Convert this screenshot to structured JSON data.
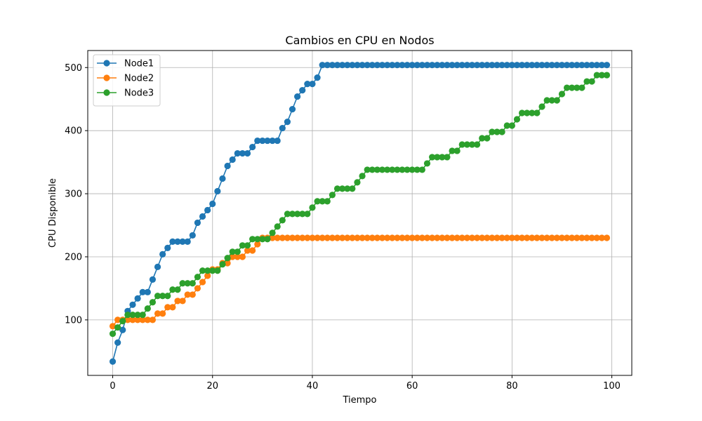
{
  "chart_data": {
    "type": "line",
    "title": "Cambios en CPU en Nodos",
    "xlabel": "Tiempo",
    "ylabel": "CPU Disponible",
    "xlim": [
      -5,
      104
    ],
    "ylim": [
      12,
      527
    ],
    "xticks": [
      0,
      20,
      40,
      60,
      80,
      100
    ],
    "yticks": [
      100,
      200,
      300,
      400,
      500
    ],
    "grid": true,
    "legend_position": "upper-left",
    "series": [
      {
        "name": "Node1",
        "color": "#1f77b4",
        "values": [
          34,
          64,
          84,
          114,
          124,
          134,
          144,
          144,
          164,
          184,
          204,
          214,
          224,
          224,
          224,
          224,
          234,
          254,
          264,
          274,
          284,
          304,
          324,
          344,
          354,
          364,
          364,
          364,
          374,
          384,
          384,
          384,
          384,
          384,
          404,
          414,
          434,
          454,
          464,
          474,
          474,
          484,
          504,
          504,
          504,
          504,
          504,
          504,
          504,
          504,
          504,
          504,
          504,
          504,
          504,
          504,
          504,
          504,
          504,
          504,
          504,
          504,
          504,
          504,
          504,
          504,
          504,
          504,
          504,
          504,
          504,
          504,
          504,
          504,
          504,
          504,
          504,
          504,
          504,
          504,
          504,
          504,
          504,
          504,
          504,
          504,
          504,
          504,
          504,
          504,
          504,
          504,
          504,
          504,
          504,
          504,
          504,
          504,
          504,
          504
        ]
      },
      {
        "name": "Node2",
        "color": "#ff7f0e",
        "values": [
          90,
          100,
          100,
          100,
          100,
          100,
          100,
          100,
          100,
          110,
          110,
          120,
          120,
          130,
          130,
          140,
          140,
          150,
          160,
          170,
          180,
          180,
          190,
          190,
          200,
          200,
          200,
          210,
          210,
          220,
          230,
          230,
          230,
          230,
          230,
          230,
          230,
          230,
          230,
          230,
          230,
          230,
          230,
          230,
          230,
          230,
          230,
          230,
          230,
          230,
          230,
          230,
          230,
          230,
          230,
          230,
          230,
          230,
          230,
          230,
          230,
          230,
          230,
          230,
          230,
          230,
          230,
          230,
          230,
          230,
          230,
          230,
          230,
          230,
          230,
          230,
          230,
          230,
          230,
          230,
          230,
          230,
          230,
          230,
          230,
          230,
          230,
          230,
          230,
          230,
          230,
          230,
          230,
          230,
          230,
          230,
          230,
          230,
          230,
          230
        ]
      },
      {
        "name": "Node3",
        "color": "#2ca02c",
        "values": [
          78,
          88,
          98,
          108,
          108,
          108,
          108,
          118,
          128,
          138,
          138,
          138,
          148,
          148,
          158,
          158,
          158,
          168,
          178,
          178,
          178,
          178,
          188,
          198,
          208,
          208,
          218,
          218,
          228,
          228,
          228,
          228,
          238,
          248,
          258,
          268,
          268,
          268,
          268,
          268,
          278,
          288,
          288,
          288,
          298,
          308,
          308,
          308,
          308,
          318,
          328,
          338,
          338,
          338,
          338,
          338,
          338,
          338,
          338,
          338,
          338,
          338,
          338,
          348,
          358,
          358,
          358,
          358,
          368,
          368,
          378,
          378,
          378,
          378,
          388,
          388,
          398,
          398,
          398,
          408,
          408,
          418,
          428,
          428,
          428,
          428,
          438,
          448,
          448,
          448,
          458,
          468,
          468,
          468,
          468,
          478,
          478,
          488,
          488,
          488
        ]
      }
    ]
  }
}
